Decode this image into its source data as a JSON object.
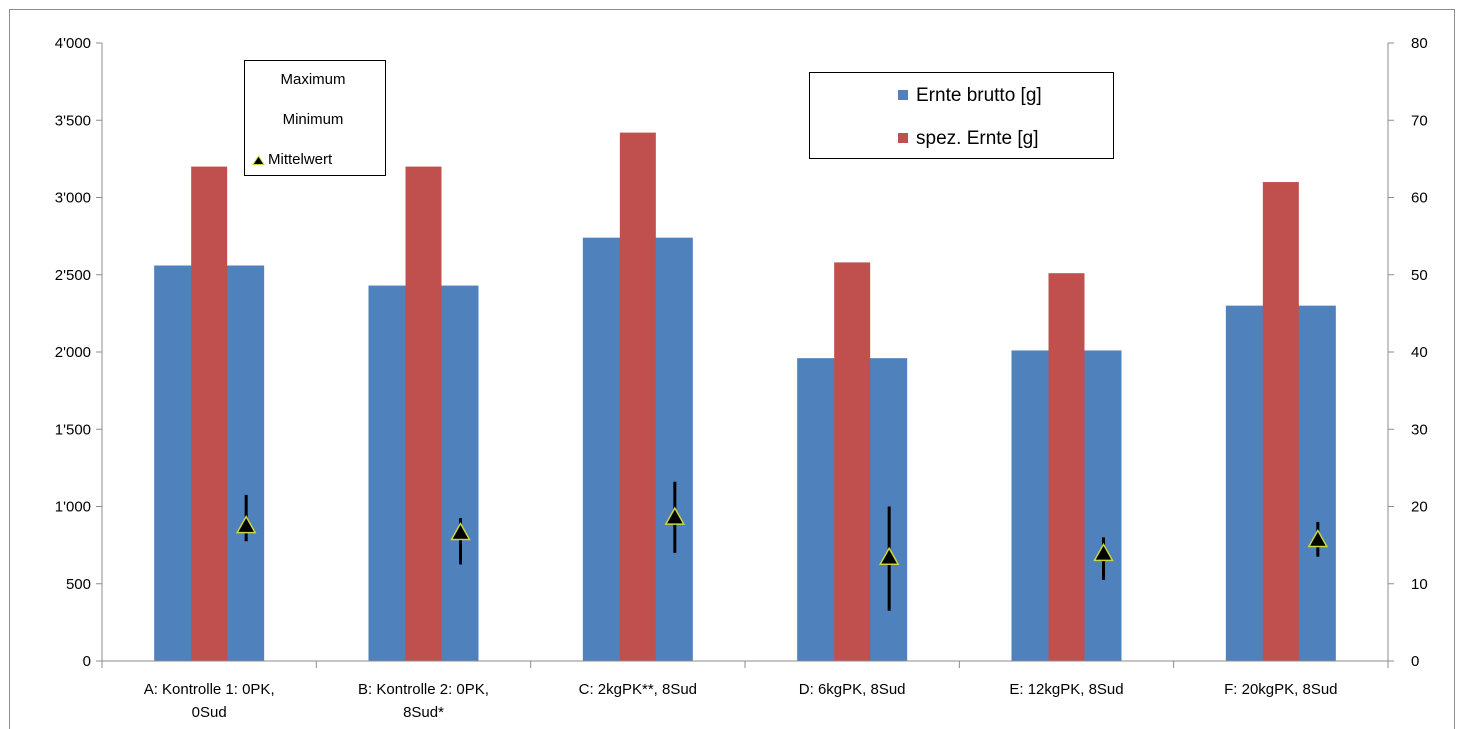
{
  "chart_data": {
    "type": "bar",
    "categories": [
      [
        "A: Kontrolle 1: 0PK,",
        "0Sud"
      ],
      [
        "B: Kontrolle 2: 0PK,",
        "8Sud*"
      ],
      [
        "C: 2kgPK**, 8Sud"
      ],
      [
        "D: 6kgPK, 8Sud"
      ],
      [
        "E: 12kgPK, 8Sud"
      ],
      [
        "F: 20kgPK, 8Sud"
      ]
    ],
    "y_left": {
      "min": 0,
      "max": 4000,
      "ticks": [
        0,
        500,
        1000,
        1500,
        2000,
        2500,
        3000,
        3500,
        4000
      ],
      "tick_labels": [
        "0",
        "500",
        "1'000",
        "1'500",
        "2'000",
        "2'500",
        "3'000",
        "3'500",
        "4'000"
      ]
    },
    "y_right": {
      "min": 0,
      "max": 80,
      "ticks": [
        0,
        10,
        20,
        30,
        40,
        50,
        60,
        70,
        80
      ],
      "tick_labels": [
        "0",
        "10",
        "20",
        "30",
        "40",
        "50",
        "60",
        "70",
        "80"
      ]
    },
    "series": [
      {
        "name": "Ernte brutto [g]",
        "axis": "left",
        "color": "#4F81BD",
        "values": [
          2560,
          2430,
          2740,
          1960,
          2010,
          2300
        ]
      },
      {
        "name": "spez. Ernte [g]",
        "axis": "left",
        "color": "#C0504D",
        "values": [
          3200,
          3200,
          3420,
          2580,
          2510,
          3100
        ]
      }
    ],
    "range_series": {
      "axis": "right",
      "max": [
        21.5,
        18.5,
        23.2,
        20,
        16,
        18
      ],
      "min": [
        15.5,
        12.5,
        14,
        6.5,
        10.5,
        13.5
      ],
      "mean": [
        17.4,
        16.5,
        18.5,
        13.3,
        13.8,
        15.6
      ],
      "marker_color": "#000000",
      "marker_edge": "#C9D63C"
    },
    "legend_stats": {
      "maximum": "Maximum",
      "minimum": "Minimum",
      "mean": "Mittelwert"
    },
    "legend_series": [
      "Ernte brutto [g]",
      "spez. Ernte [g]"
    ],
    "grid": false
  }
}
